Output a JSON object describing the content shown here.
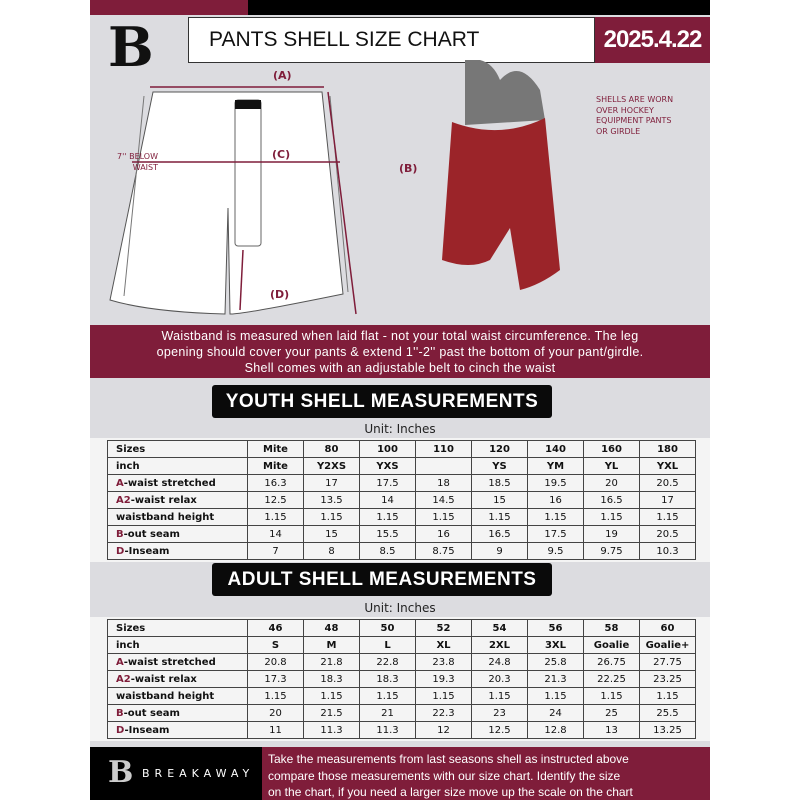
{
  "header": {
    "title": "PANTS SHELL SIZE CHART",
    "date": "2025.4.22",
    "logo_letter": "B"
  },
  "diagram": {
    "label_a": "(A)",
    "label_b": "(B)",
    "label_c": "(C)",
    "label_d": "(D)",
    "c_note": [
      "7'' BELOW",
      "WAIST"
    ],
    "shell_note": [
      "SHELLS ARE WORN",
      "OVER HOCKEY",
      "EQUIPMENT PANTS",
      "OR GIRDLE"
    ]
  },
  "banner": [
    "Waistband is measured when laid flat - not your total waist circumference. The leg",
    "opening should cover your pants & extend 1''-2'' past the bottom of your pant/girdle.",
    "Shell comes with an adjustable belt to cinch the waist"
  ],
  "youth": {
    "heading": "YOUTH SHELL MEASUREMENTS",
    "unit": "Unit: Inches",
    "rows": [
      {
        "prefix": "",
        "label": "Sizes",
        "values": [
          "Mite",
          "80",
          "100",
          "110",
          "120",
          "140",
          "160",
          "180"
        ]
      },
      {
        "prefix": "",
        "label": "inch",
        "values": [
          "Mite",
          "Y2XS",
          "YXS",
          "",
          "YS",
          "YM",
          "YL",
          "YXL"
        ]
      },
      {
        "prefix": "A",
        "label": "-waist stretched",
        "values": [
          "16.3",
          "17",
          "17.5",
          "18",
          "18.5",
          "19.5",
          "20",
          "20.5"
        ]
      },
      {
        "prefix": "A2",
        "label": "-waist relax",
        "values": [
          "12.5",
          "13.5",
          "14",
          "14.5",
          "15",
          "16",
          "16.5",
          "17"
        ]
      },
      {
        "prefix": "",
        "label": "waistband height",
        "values": [
          "1.15",
          "1.15",
          "1.15",
          "1.15",
          "1.15",
          "1.15",
          "1.15",
          "1.15"
        ]
      },
      {
        "prefix": "B",
        "label": "-out seam",
        "values": [
          "14",
          "15",
          "15.5",
          "16",
          "16.5",
          "17.5",
          "19",
          "20.5"
        ]
      },
      {
        "prefix": "D",
        "label": "-Inseam",
        "values": [
          "7",
          "8",
          "8.5",
          "8.75",
          "9",
          "9.5",
          "9.75",
          "10.3"
        ]
      }
    ]
  },
  "adult": {
    "heading": "ADULT SHELL MEASUREMENTS",
    "unit": "Unit: Inches",
    "rows": [
      {
        "prefix": "",
        "label": "Sizes",
        "values": [
          "46",
          "48",
          "50",
          "52",
          "54",
          "56",
          "58",
          "60"
        ]
      },
      {
        "prefix": "",
        "label": "inch",
        "values": [
          "S",
          "M",
          "L",
          "XL",
          "2XL",
          "3XL",
          "Goalie",
          "Goalie+"
        ]
      },
      {
        "prefix": "A",
        "label": "-waist stretched",
        "values": [
          "20.8",
          "21.8",
          "22.8",
          "23.8",
          "24.8",
          "25.8",
          "26.75",
          "27.75"
        ]
      },
      {
        "prefix": "A2",
        "label": "-waist relax",
        "values": [
          "17.3",
          "18.3",
          "18.3",
          "19.3",
          "20.3",
          "21.3",
          "22.25",
          "23.25"
        ]
      },
      {
        "prefix": "",
        "label": "waistband height",
        "values": [
          "1.15",
          "1.15",
          "1.15",
          "1.15",
          "1.15",
          "1.15",
          "1.15",
          "1.15"
        ]
      },
      {
        "prefix": "B",
        "label": "-out seam",
        "values": [
          "20",
          "21.5",
          "21",
          "22.3",
          "23",
          "24",
          "25",
          "25.5"
        ]
      },
      {
        "prefix": "D",
        "label": "-Inseam",
        "values": [
          "11",
          "11.3",
          "11.3",
          "12",
          "12.5",
          "12.8",
          "13",
          "13.25"
        ]
      }
    ]
  },
  "footer": {
    "brand": "BREAKAWAY",
    "instructions": [
      "Take the measurements from last seasons shell as instructed above",
      "compare those measurements  with our size chart. Identify the size",
      "on the chart, if you need a larger size move up the scale on the chart"
    ]
  },
  "colors": {
    "maroon": "#7f1d3a",
    "background": "#dcdce0"
  }
}
